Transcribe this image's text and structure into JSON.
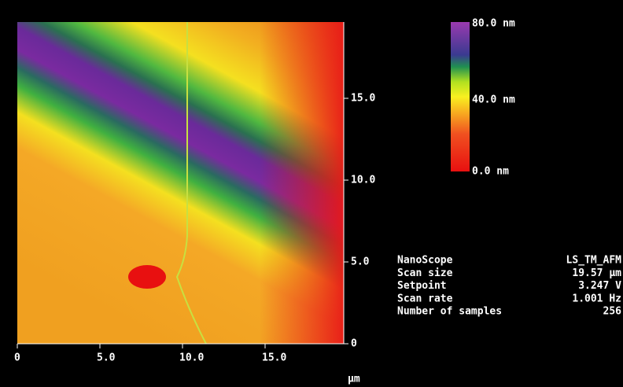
{
  "image": {
    "x_ticks": [
      "0",
      "5.0",
      "10.0",
      "15.0"
    ],
    "y_ticks": [
      "0",
      "5.0",
      "10.0",
      "15.0"
    ],
    "x_unit": "µm",
    "colorbar": {
      "top": "80.0 nm",
      "middle": "40.0 nm",
      "bottom": "0.0 nm"
    }
  },
  "parameters": [
    [
      "NanoScope",
      "LS_TM_AFM"
    ],
    [
      "Scan size",
      "19.57 µm"
    ],
    [
      "Setpoint",
      "3.247 V"
    ],
    [
      "Scan rate",
      "1.001 Hz"
    ],
    [
      "Number of samples",
      "256"
    ]
  ]
}
